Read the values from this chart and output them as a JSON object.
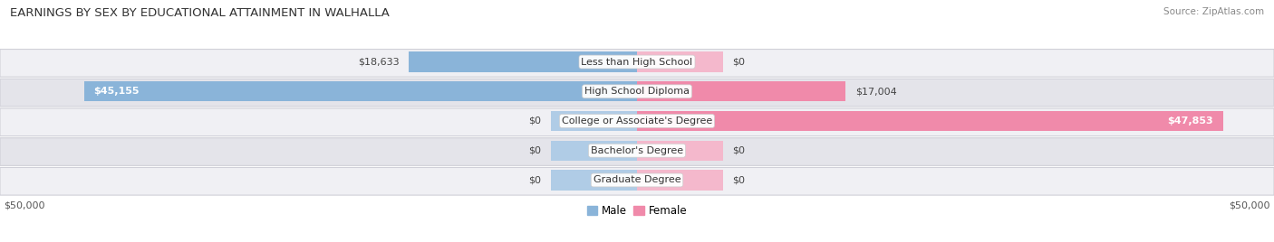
{
  "title": "EARNINGS BY SEX BY EDUCATIONAL ATTAINMENT IN WALHALLA",
  "source": "Source: ZipAtlas.com",
  "categories": [
    "Less than High School",
    "High School Diploma",
    "College or Associate's Degree",
    "Bachelor's Degree",
    "Graduate Degree"
  ],
  "male_values": [
    18633,
    45155,
    0,
    0,
    0
  ],
  "female_values": [
    0,
    17004,
    47853,
    0,
    0
  ],
  "male_color": "#8ab4d9",
  "female_color": "#f08aaa",
  "female_color_light": "#f4b8cc",
  "male_color_light": "#b0cce6",
  "row_bg_colors": [
    "#f0f0f4",
    "#e4e4ea",
    "#f0f0f4",
    "#e4e4ea",
    "#f0f0f4"
  ],
  "row_border_color": "#d0d0d8",
  "xlim": 50000,
  "stub_size": 7000,
  "title_fontsize": 9.5,
  "label_fontsize": 8.0,
  "val_fontsize": 8.0,
  "tick_fontsize": 8.0,
  "source_fontsize": 7.5,
  "legend_fontsize": 8.5
}
